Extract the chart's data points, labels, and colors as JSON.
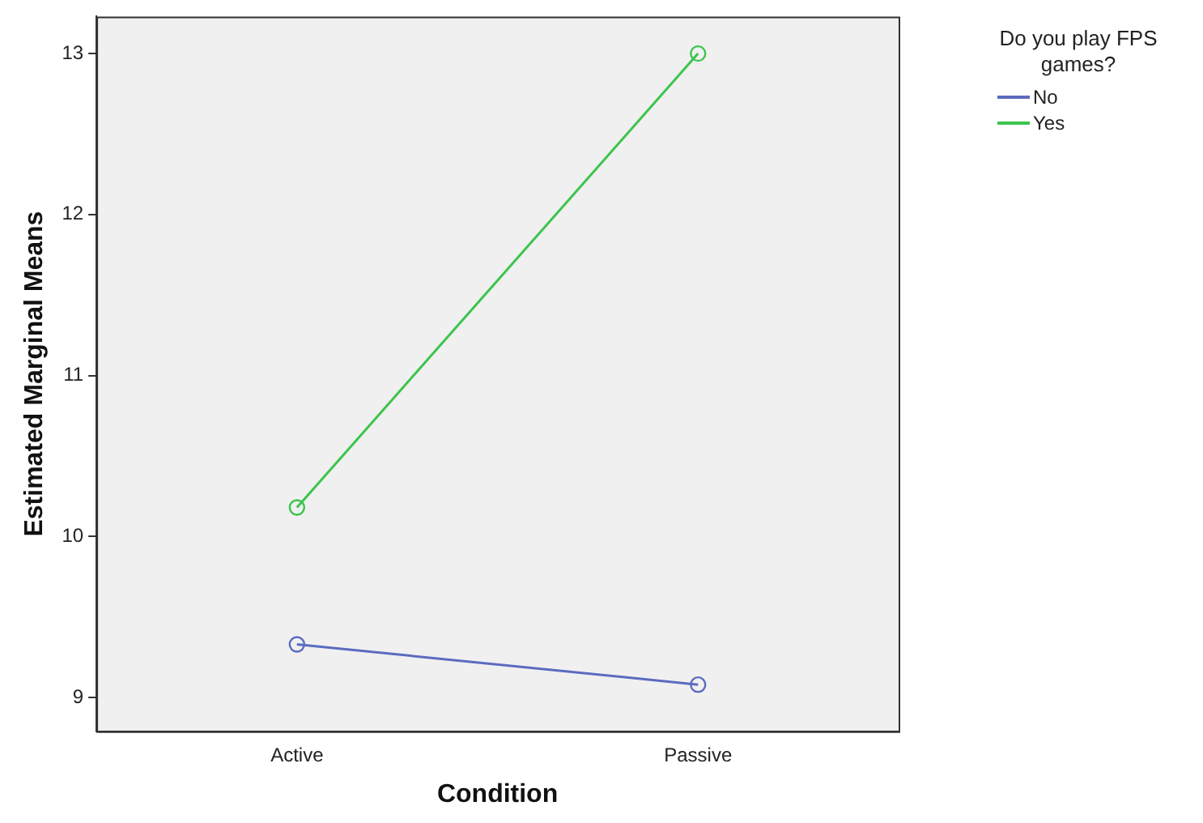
{
  "chart_data": {
    "type": "line",
    "xlabel": "Condition",
    "ylabel": "Estimated Marginal Means",
    "legend_title": "Do you play FPS games?",
    "categories": [
      "Active",
      "Passive"
    ],
    "series": [
      {
        "name": "No",
        "color": "#5b6bbf",
        "values": [
          9.33,
          9.08
        ]
      },
      {
        "name": "Yes",
        "color": "#3cc44c",
        "values": [
          10.18,
          13.0
        ]
      }
    ],
    "ylim": [
      8.79,
      13.23
    ],
    "yticks": [
      9,
      10,
      11,
      12,
      13
    ],
    "grid": false,
    "legend": "top right",
    "marker": "circle",
    "line_style": "solid"
  }
}
